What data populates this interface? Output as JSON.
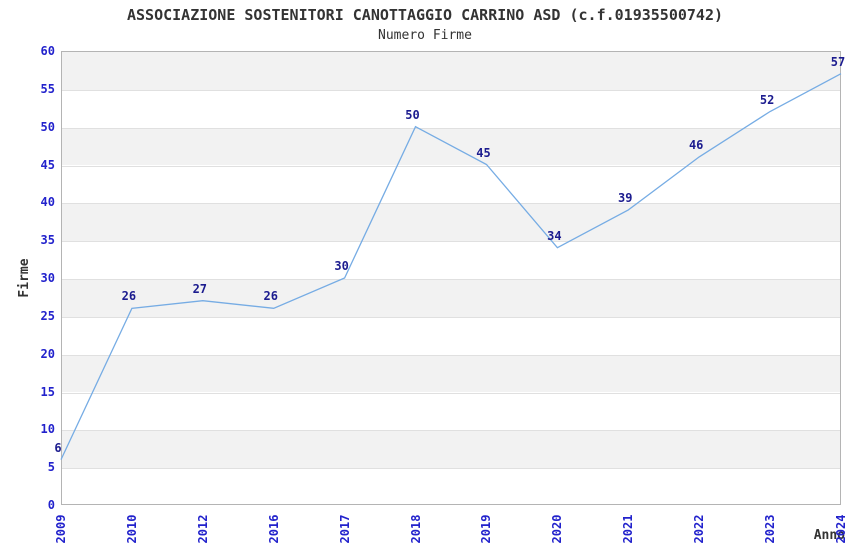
{
  "chart_data": {
    "type": "line",
    "title": "ASSOCIAZIONE SOSTENITORI CANOTTAGGIO CARRINO ASD (c.f.01935500742)",
    "subtitle": "Numero Firme",
    "xlabel": "Anno",
    "ylabel": "Firme",
    "categories": [
      "2009",
      "2010",
      "2012",
      "2016",
      "2017",
      "2018",
      "2019",
      "2020",
      "2021",
      "2022",
      "2023",
      "2024"
    ],
    "values": [
      6,
      26,
      27,
      26,
      30,
      50,
      45,
      34,
      39,
      46,
      52,
      57
    ],
    "ylim": [
      0,
      60
    ],
    "ytick_step": 5,
    "grid": true,
    "legend": "none",
    "point_labels_visible": true,
    "colors": {
      "line": "#76ACE4",
      "tick_label": "#2222CC",
      "point_label": "#1C1C8F",
      "band": "#F2F2F2",
      "gridline": "#E0E0E0",
      "plot_border": "#B4B4B4",
      "text": "#333333",
      "background": "#FFFFFF"
    }
  }
}
